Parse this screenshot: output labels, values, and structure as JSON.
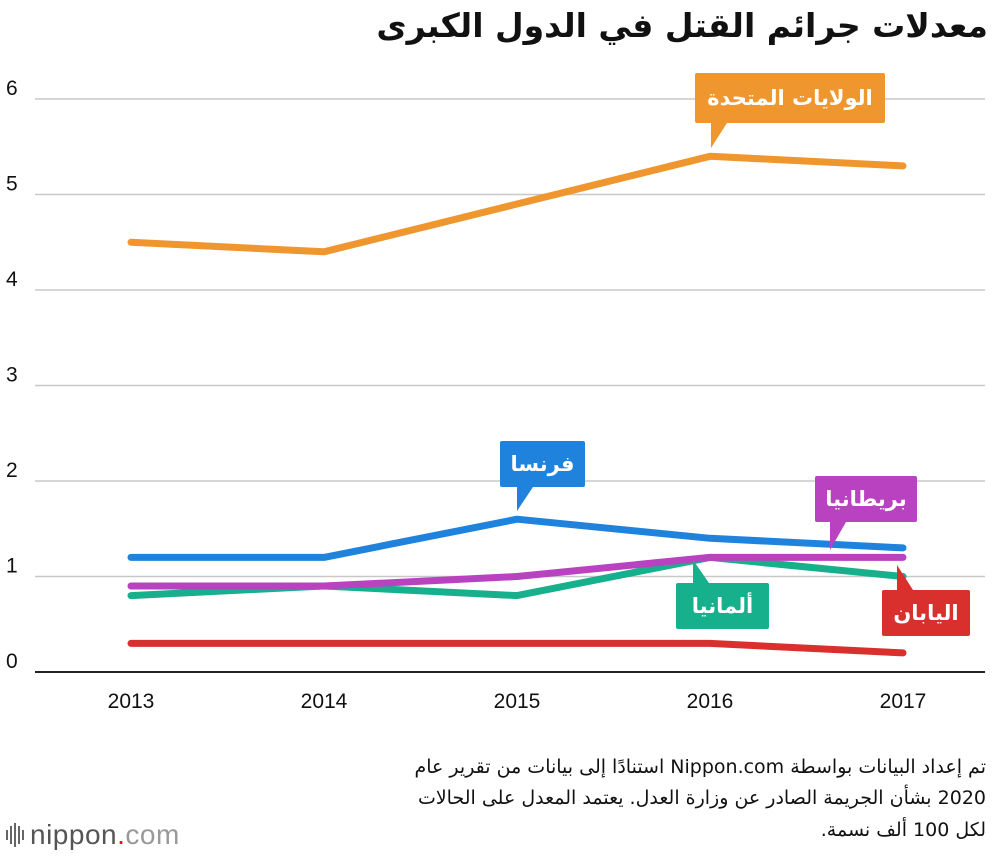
{
  "title": "معدلات جرائم القتل في الدول الكبرى",
  "chart_data": {
    "type": "line",
    "title": "معدلات جرائم القتل في الدول الكبرى",
    "x": [
      "2013",
      "2014",
      "2015",
      "2016",
      "2017"
    ],
    "ylim": [
      0,
      6
    ],
    "yticks": [
      "0",
      "1",
      "2",
      "3",
      "4",
      "5",
      "6"
    ],
    "grid": true,
    "series": [
      {
        "name": "الولايات المتحدة",
        "color": "#f0962e",
        "values": [
          4.5,
          4.4,
          4.9,
          5.4,
          5.3
        ]
      },
      {
        "name": "فرنسا",
        "color": "#1f83dd",
        "values": [
          1.2,
          1.2,
          1.6,
          1.4,
          1.3
        ]
      },
      {
        "name": "بريطانيا",
        "color": "#b842c0",
        "values": [
          0.9,
          0.9,
          1.0,
          1.2,
          1.2
        ]
      },
      {
        "name": "ألمانيا",
        "color": "#17b08c",
        "values": [
          0.8,
          0.9,
          0.8,
          1.2,
          1.0
        ]
      },
      {
        "name": "اليابان",
        "color": "#d9302e",
        "values": [
          0.3,
          0.3,
          0.3,
          0.3,
          0.2
        ]
      }
    ]
  },
  "source": {
    "line1": "تم إعداد البيانات بواسطة Nippon.com استنادًا إلى بيانات من تقرير عام",
    "line2": "2020 بشأن الجريمة الصادر عن وزارة العدل. يعتمد المعدل على الحالات",
    "line3": "لكل 100 ألف نسمة."
  },
  "logo": {
    "name": "nippon",
    "dot": ".",
    "tld": "com"
  }
}
